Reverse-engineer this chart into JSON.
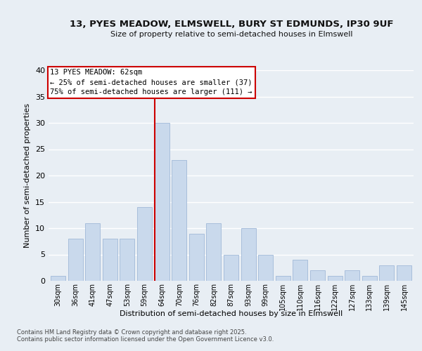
{
  "title1": "13, PYES MEADOW, ELMSWELL, BURY ST EDMUNDS, IP30 9UF",
  "title2": "Size of property relative to semi-detached houses in Elmswell",
  "xlabel": "Distribution of semi-detached houses by size in Elmswell",
  "ylabel": "Number of semi-detached properties",
  "categories": [
    "30sqm",
    "36sqm",
    "41sqm",
    "47sqm",
    "53sqm",
    "59sqm",
    "64sqm",
    "70sqm",
    "76sqm",
    "82sqm",
    "87sqm",
    "93sqm",
    "99sqm",
    "105sqm",
    "110sqm",
    "116sqm",
    "122sqm",
    "127sqm",
    "133sqm",
    "139sqm",
    "145sqm"
  ],
  "values": [
    1,
    8,
    11,
    8,
    8,
    14,
    30,
    23,
    9,
    11,
    5,
    10,
    5,
    1,
    4,
    2,
    1,
    2,
    1,
    3,
    3
  ],
  "bar_color": "#c9d9ec",
  "bar_edge_color": "#a0b8d8",
  "background_color": "#e8eef4",
  "grid_color": "#ffffff",
  "annotation_text": "13 PYES MEADOW: 62sqm\n← 25% of semi-detached houses are smaller (37)\n75% of semi-detached houses are larger (111) →",
  "property_bar_index": 6,
  "red_line_color": "#cc0000",
  "annotation_box_color": "#ffffff",
  "annotation_box_edge": "#cc0000",
  "footer_text": "Contains HM Land Registry data © Crown copyright and database right 2025.\nContains public sector information licensed under the Open Government Licence v3.0.",
  "ylim": [
    0,
    40
  ],
  "yticks": [
    0,
    5,
    10,
    15,
    20,
    25,
    30,
    35,
    40
  ]
}
